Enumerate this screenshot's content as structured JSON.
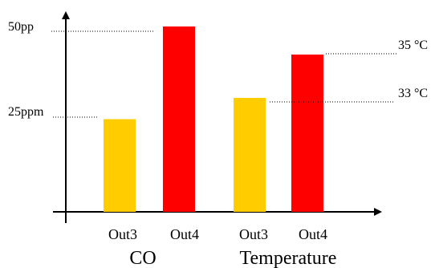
{
  "chart_data": {
    "type": "bar",
    "groups": [
      {
        "label": "CO",
        "categories": [
          "Out3",
          "Out4"
        ],
        "values": [
          25,
          50
        ],
        "unit": "ppm",
        "colors": [
          "#FFCC00",
          "#FF0000"
        ],
        "reference_labels": [
          "25ppm",
          "50pp"
        ]
      },
      {
        "label": "Temperature",
        "categories": [
          "Out3",
          "Out4"
        ],
        "values": [
          33,
          35
        ],
        "unit": "°C",
        "colors": [
          "#FFCC00",
          "#FF0000"
        ],
        "reference_labels": [
          "33 °C",
          "35 °C"
        ]
      }
    ],
    "xlabel": "",
    "ylabel": "",
    "grid": false,
    "legend": "none"
  }
}
